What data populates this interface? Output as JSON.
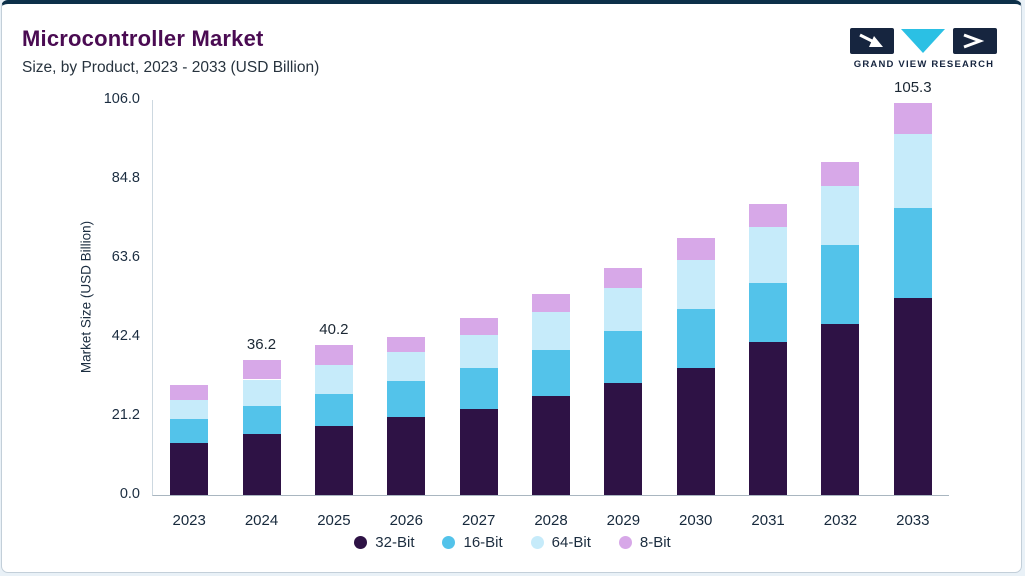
{
  "header": {
    "title": "Microcontroller Market",
    "subtitle": "Size, by Product, 2023 - 2033 (USD Billion)",
    "logo_text": "GRAND VIEW RESEARCH"
  },
  "colors": {
    "accent_top": "#0d3049",
    "title_purple": "#4a0b52",
    "logo_navy": "#16253f",
    "logo_cyan": "#2bc0e4"
  },
  "chart_data": {
    "type": "bar",
    "stacked": true,
    "title": "Microcontroller Market Size, by Product, 2023 - 2033 (USD Billion)",
    "xlabel": "",
    "ylabel": "Market Size (USD Billion)",
    "ylim": [
      0,
      106
    ],
    "yticks": [
      "0.0",
      "21.2",
      "42.4",
      "63.6",
      "84.8",
      "106.0"
    ],
    "grid": false,
    "legend_position": "bottom",
    "categories": [
      "2023",
      "2024",
      "2025",
      "2026",
      "2027",
      "2028",
      "2029",
      "2030",
      "2031",
      "2032",
      "2033"
    ],
    "series": [
      {
        "name": "32-Bit",
        "color": "#2e1245",
        "values": [
          14.0,
          16.5,
          18.5,
          21.0,
          23.0,
          26.5,
          30.0,
          34.0,
          41.0,
          46.0,
          53.0
        ]
      },
      {
        "name": "16-Bit",
        "color": "#53c3ea",
        "values": [
          6.4,
          7.5,
          8.5,
          9.5,
          11.0,
          12.5,
          14.0,
          16.0,
          16.0,
          21.0,
          24.0
        ]
      },
      {
        "name": "64-Bit",
        "color": "#c6ebfa",
        "values": [
          5.2,
          7.0,
          8.0,
          8.0,
          9.0,
          10.0,
          11.5,
          13.0,
          15.0,
          16.0,
          20.0
        ]
      },
      {
        "name": "8-Bit",
        "color": "#d7a8e8",
        "values": [
          4.0,
          5.2,
          5.2,
          3.9,
          4.5,
          5.0,
          5.5,
          6.0,
          6.0,
          6.5,
          8.3
        ]
      }
    ],
    "bar_labels": [
      "",
      "36.2",
      "40.2",
      "",
      "",
      "",
      "",
      "",
      "",
      "",
      "105.3"
    ],
    "totals": [
      29.6,
      36.2,
      40.2,
      42.4,
      47.5,
      54.0,
      61.0,
      69.0,
      78.0,
      89.5,
      105.3
    ]
  }
}
